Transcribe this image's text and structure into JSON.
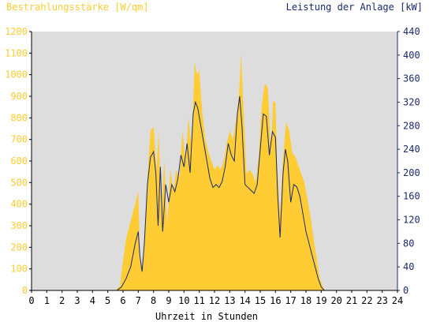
{
  "chart_data": {
    "type": "area",
    "title_left": "Bestrahlungsstärke [W/qm]",
    "title_right": "Leistung der Anlage [kW]",
    "xlabel": "Uhrzeit in Stunden",
    "x_ticks": [
      0,
      1,
      2,
      3,
      4,
      5,
      6,
      7,
      8,
      9,
      10,
      11,
      12,
      13,
      14,
      15,
      16,
      17,
      18,
      19,
      20,
      21,
      22,
      23,
      24
    ],
    "xlim": [
      0,
      24
    ],
    "y_left": {
      "ticks": [
        0,
        100,
        200,
        300,
        400,
        500,
        600,
        700,
        800,
        900,
        1000,
        1100,
        1200
      ],
      "lim": [
        0,
        1200
      ],
      "color": "#FFCC33"
    },
    "y_right": {
      "ticks": [
        0,
        40,
        80,
        120,
        160,
        200,
        240,
        280,
        320,
        360,
        400,
        440
      ],
      "lim": [
        0,
        440
      ],
      "color": "#1a2a6c"
    },
    "plot_background": "#DDDDDD",
    "grid": false,
    "series": [
      {
        "axis": "left",
        "kind": "area",
        "color": "#FFCC33",
        "points": [
          [
            0,
            0
          ],
          [
            5.5,
            0
          ],
          [
            5.8,
            20
          ],
          [
            6.0,
            140
          ],
          [
            6.2,
            240
          ],
          [
            6.5,
            320
          ],
          [
            6.8,
            400
          ],
          [
            7.0,
            460
          ],
          [
            7.1,
            180
          ],
          [
            7.25,
            80
          ],
          [
            7.4,
            250
          ],
          [
            7.6,
            520
          ],
          [
            7.8,
            740
          ],
          [
            8.0,
            760
          ],
          [
            8.2,
            560
          ],
          [
            8.35,
            740
          ],
          [
            8.5,
            360
          ],
          [
            8.7,
            600
          ],
          [
            8.9,
            300
          ],
          [
            9.1,
            560
          ],
          [
            9.3,
            460
          ],
          [
            9.5,
            560
          ],
          [
            9.7,
            520
          ],
          [
            9.9,
            740
          ],
          [
            10.1,
            600
          ],
          [
            10.3,
            800
          ],
          [
            10.5,
            660
          ],
          [
            10.7,
            1060
          ],
          [
            10.85,
            1000
          ],
          [
            11.0,
            1020
          ],
          [
            11.2,
            820
          ],
          [
            11.4,
            700
          ],
          [
            11.6,
            640
          ],
          [
            11.8,
            600
          ],
          [
            12.0,
            560
          ],
          [
            12.2,
            580
          ],
          [
            12.4,
            560
          ],
          [
            12.6,
            600
          ],
          [
            12.8,
            680
          ],
          [
            13.0,
            740
          ],
          [
            13.2,
            700
          ],
          [
            13.4,
            780
          ],
          [
            13.6,
            900
          ],
          [
            13.75,
            1100
          ],
          [
            13.9,
            840
          ],
          [
            14.1,
            540
          ],
          [
            14.3,
            560
          ],
          [
            14.5,
            540
          ],
          [
            14.7,
            500
          ],
          [
            14.9,
            620
          ],
          [
            15.1,
            860
          ],
          [
            15.3,
            960
          ],
          [
            15.5,
            940
          ],
          [
            15.7,
            640
          ],
          [
            15.85,
            880
          ],
          [
            16.0,
            870
          ],
          [
            16.1,
            600
          ],
          [
            16.3,
            340
          ],
          [
            16.5,
            620
          ],
          [
            16.7,
            780
          ],
          [
            16.9,
            740
          ],
          [
            17.1,
            640
          ],
          [
            17.3,
            620
          ],
          [
            17.5,
            580
          ],
          [
            17.7,
            540
          ],
          [
            17.9,
            500
          ],
          [
            18.1,
            420
          ],
          [
            18.3,
            340
          ],
          [
            18.5,
            240
          ],
          [
            18.7,
            150
          ],
          [
            18.9,
            60
          ],
          [
            19.2,
            0
          ],
          [
            24,
            0
          ]
        ]
      },
      {
        "axis": "right",
        "kind": "line",
        "color": "#1a2a6c",
        "points": [
          [
            0,
            0
          ],
          [
            5.6,
            0
          ],
          [
            5.9,
            6
          ],
          [
            6.2,
            20
          ],
          [
            6.5,
            40
          ],
          [
            6.8,
            80
          ],
          [
            7.0,
            100
          ],
          [
            7.1,
            60
          ],
          [
            7.25,
            32
          ],
          [
            7.4,
            80
          ],
          [
            7.6,
            180
          ],
          [
            7.8,
            226
          ],
          [
            8.0,
            236
          ],
          [
            8.15,
            200
          ],
          [
            8.3,
            110
          ],
          [
            8.45,
            210
          ],
          [
            8.6,
            100
          ],
          [
            8.8,
            180
          ],
          [
            9.0,
            150
          ],
          [
            9.2,
            180
          ],
          [
            9.4,
            168
          ],
          [
            9.6,
            190
          ],
          [
            9.8,
            230
          ],
          [
            10.0,
            210
          ],
          [
            10.2,
            250
          ],
          [
            10.4,
            200
          ],
          [
            10.6,
            300
          ],
          [
            10.75,
            320
          ],
          [
            10.9,
            310
          ],
          [
            11.1,
            280
          ],
          [
            11.3,
            250
          ],
          [
            11.5,
            220
          ],
          [
            11.7,
            190
          ],
          [
            11.9,
            175
          ],
          [
            12.1,
            180
          ],
          [
            12.3,
            175
          ],
          [
            12.5,
            185
          ],
          [
            12.7,
            210
          ],
          [
            12.9,
            250
          ],
          [
            13.1,
            230
          ],
          [
            13.3,
            220
          ],
          [
            13.5,
            300
          ],
          [
            13.65,
            330
          ],
          [
            13.8,
            280
          ],
          [
            14.0,
            180
          ],
          [
            14.2,
            175
          ],
          [
            14.4,
            170
          ],
          [
            14.6,
            165
          ],
          [
            14.8,
            180
          ],
          [
            15.0,
            240
          ],
          [
            15.2,
            300
          ],
          [
            15.4,
            296
          ],
          [
            15.6,
            230
          ],
          [
            15.8,
            270
          ],
          [
            16.0,
            260
          ],
          [
            16.15,
            160
          ],
          [
            16.3,
            90
          ],
          [
            16.5,
            200
          ],
          [
            16.65,
            240
          ],
          [
            16.8,
            220
          ],
          [
            17.0,
            150
          ],
          [
            17.2,
            180
          ],
          [
            17.4,
            176
          ],
          [
            17.6,
            160
          ],
          [
            17.8,
            130
          ],
          [
            18.0,
            100
          ],
          [
            18.2,
            80
          ],
          [
            18.4,
            60
          ],
          [
            18.6,
            40
          ],
          [
            18.8,
            20
          ],
          [
            19.0,
            6
          ],
          [
            19.2,
            0
          ],
          [
            24,
            0
          ]
        ]
      }
    ]
  }
}
